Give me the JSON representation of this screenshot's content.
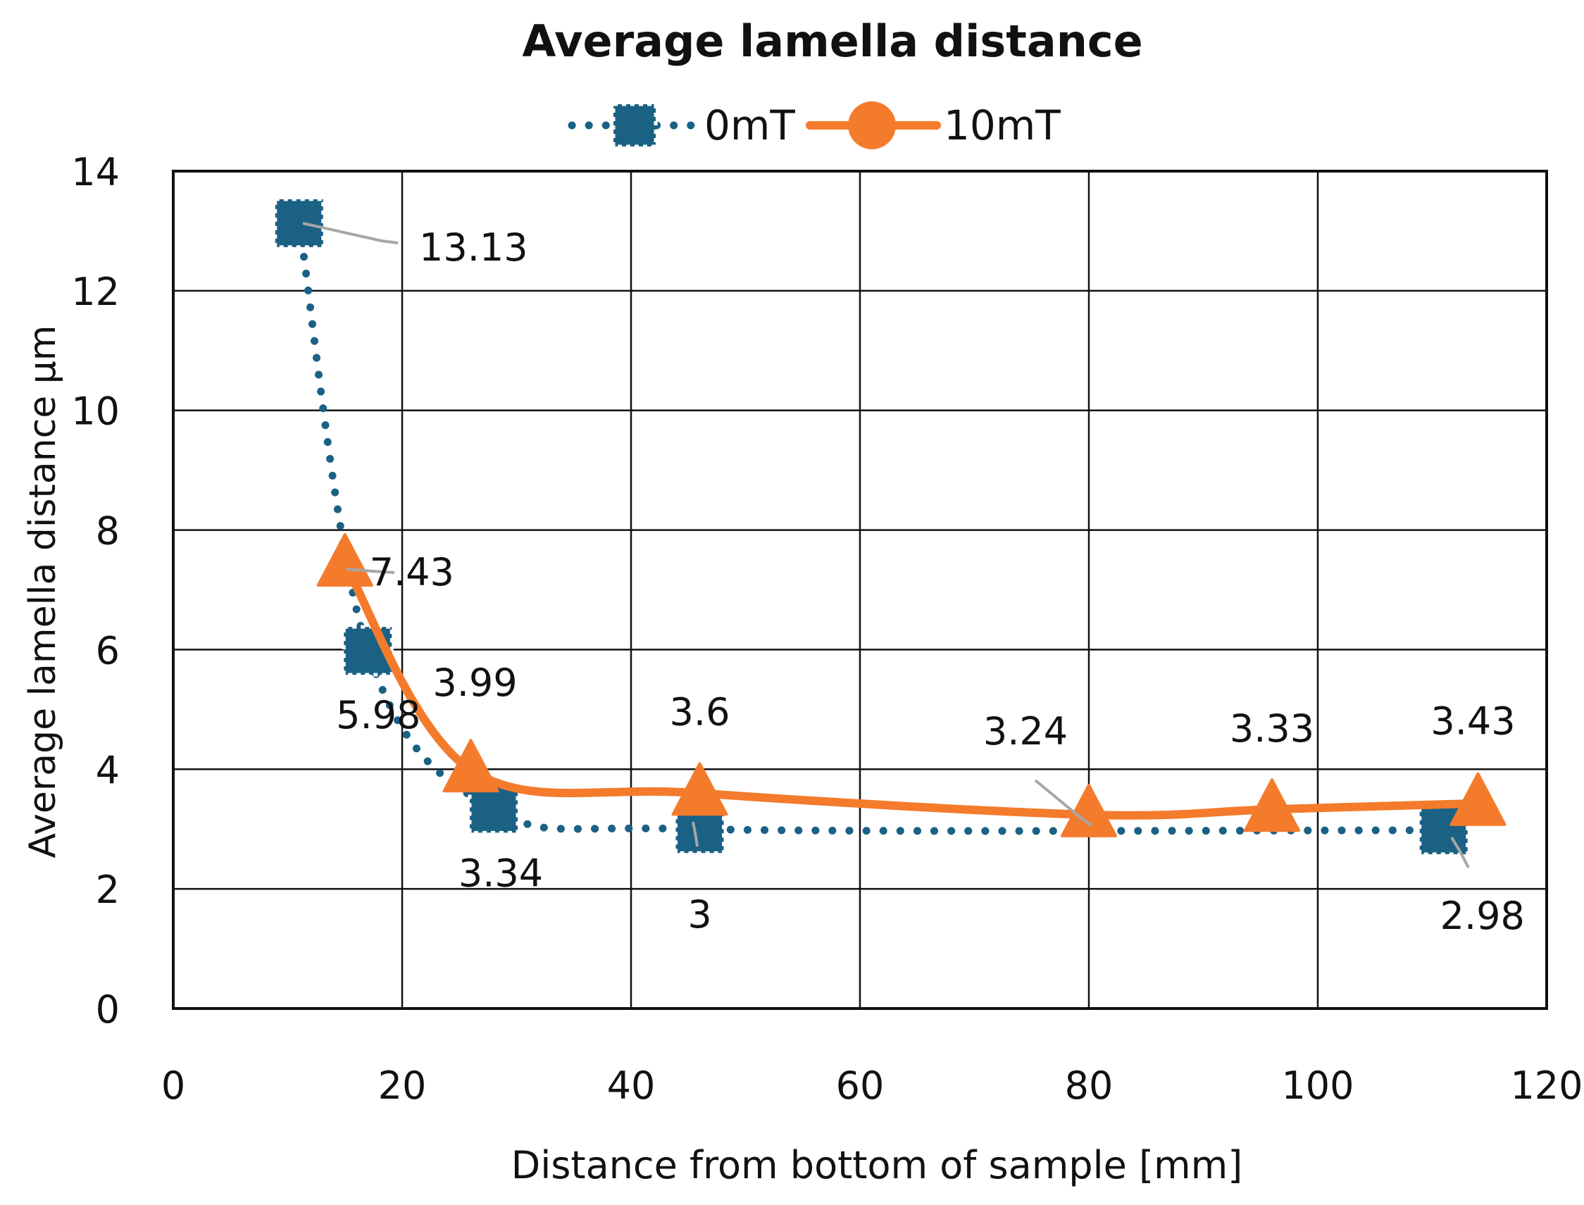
{
  "chart_data": {
    "type": "line",
    "title": "Average lamella distance",
    "xlabel": "Distance from bottom of  sample [mm]",
    "ylabel": "Average lamella distance µm",
    "xlim": [
      0,
      120
    ],
    "ylim": [
      0,
      14
    ],
    "x_ticks": [
      0,
      20,
      40,
      60,
      80,
      100,
      120
    ],
    "y_ticks": [
      0,
      2,
      4,
      6,
      8,
      10,
      12,
      14
    ],
    "grid": true,
    "legend_position": "top-center",
    "series": [
      {
        "name": "0mT",
        "color": "#1a6184",
        "line_style": "dotted",
        "marker": "square",
        "x": [
          11,
          17,
          28,
          46,
          111
        ],
        "y": [
          13.13,
          5.98,
          3.34,
          3,
          2.98
        ],
        "labels": [
          "13.13",
          "5.98",
          "3.34",
          "3",
          "2.98"
        ]
      },
      {
        "name": "10mT",
        "color": "#f47b2c",
        "line_style": "solid",
        "marker": "triangle",
        "x": [
          15,
          26,
          46,
          80,
          96,
          114
        ],
        "y": [
          7.43,
          3.99,
          3.6,
          3.24,
          3.33,
          3.43
        ],
        "labels": [
          "7.43",
          "3.99",
          "3.6",
          "3.24",
          "3.33",
          "3.43"
        ]
      }
    ]
  }
}
